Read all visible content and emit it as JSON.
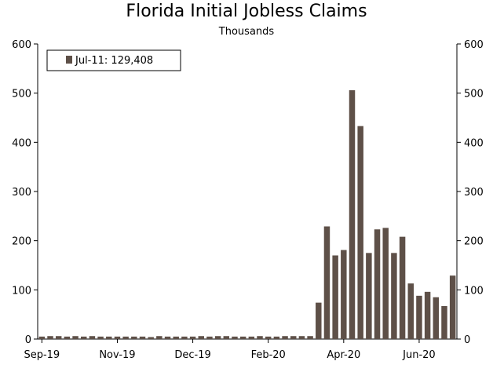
{
  "chart_data": {
    "type": "bar",
    "title": "Florida Initial Jobless Claims",
    "subtitle": "Thousands",
    "ylim": [
      0,
      600
    ],
    "yticks": [
      0,
      100,
      200,
      300,
      400,
      500,
      600
    ],
    "xtick_labels": [
      {
        "label": "Sep-19",
        "index": 0
      },
      {
        "label": "Nov-19",
        "index": 9
      },
      {
        "label": "Dec-19",
        "index": 18
      },
      {
        "label": "Feb-20",
        "index": 27
      },
      {
        "label": "Apr-20",
        "index": 36
      },
      {
        "label": "Jun-20",
        "index": 45
      }
    ],
    "legend": {
      "label": "Jul-11: 129,408",
      "position": "top-left"
    },
    "bar_color": "#5e5048",
    "grid": false,
    "values": [
      5,
      6,
      6,
      5,
      6,
      5,
      6,
      5,
      5,
      5,
      5,
      5,
      5,
      4,
      6,
      5,
      5,
      5,
      5,
      6,
      5,
      6,
      6,
      5,
      5,
      5,
      6,
      5,
      5,
      6,
      6,
      6,
      6,
      74,
      229,
      170,
      181,
      506,
      433,
      175,
      223,
      226,
      175,
      208,
      113,
      88,
      96,
      85,
      67,
      129
    ]
  }
}
